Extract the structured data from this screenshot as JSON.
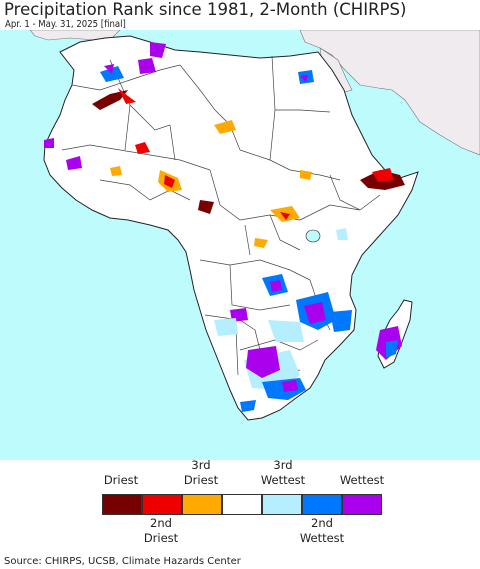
{
  "title": "Precipitation Rank since 1981, 2-Month (CHIRPS)",
  "subtitle": "Apr. 1 - May. 31, 2025 [final]",
  "colors": {
    "ocean": "#bdfbfd",
    "land": "#ffffff",
    "non_africa_land": "#efebef",
    "border": "#222222"
  },
  "legend": {
    "categories": [
      {
        "color": "#770000"
      },
      {
        "color": "#ee0000"
      },
      {
        "color": "#ffaa00"
      },
      {
        "color": "#ffffff"
      },
      {
        "color": "#b4eeff"
      },
      {
        "color": "#0077ff"
      },
      {
        "color": "#aa00ee"
      }
    ],
    "top_labels": {
      "driest": "Driest",
      "third_dry_line1": "3rd",
      "third_dry_line2": "Driest",
      "third_wet_line1": "3rd",
      "third_wet_line2": "Wettest",
      "wettest": "Wettest"
    },
    "bottom_labels": {
      "second_dry_line1": "2nd",
      "second_dry_line2": "Driest",
      "second_wet_line1": "2nd",
      "second_wet_line2": "Wettest"
    }
  },
  "source": "Source: CHIRPS, UCSB, Climate Hazards Center"
}
